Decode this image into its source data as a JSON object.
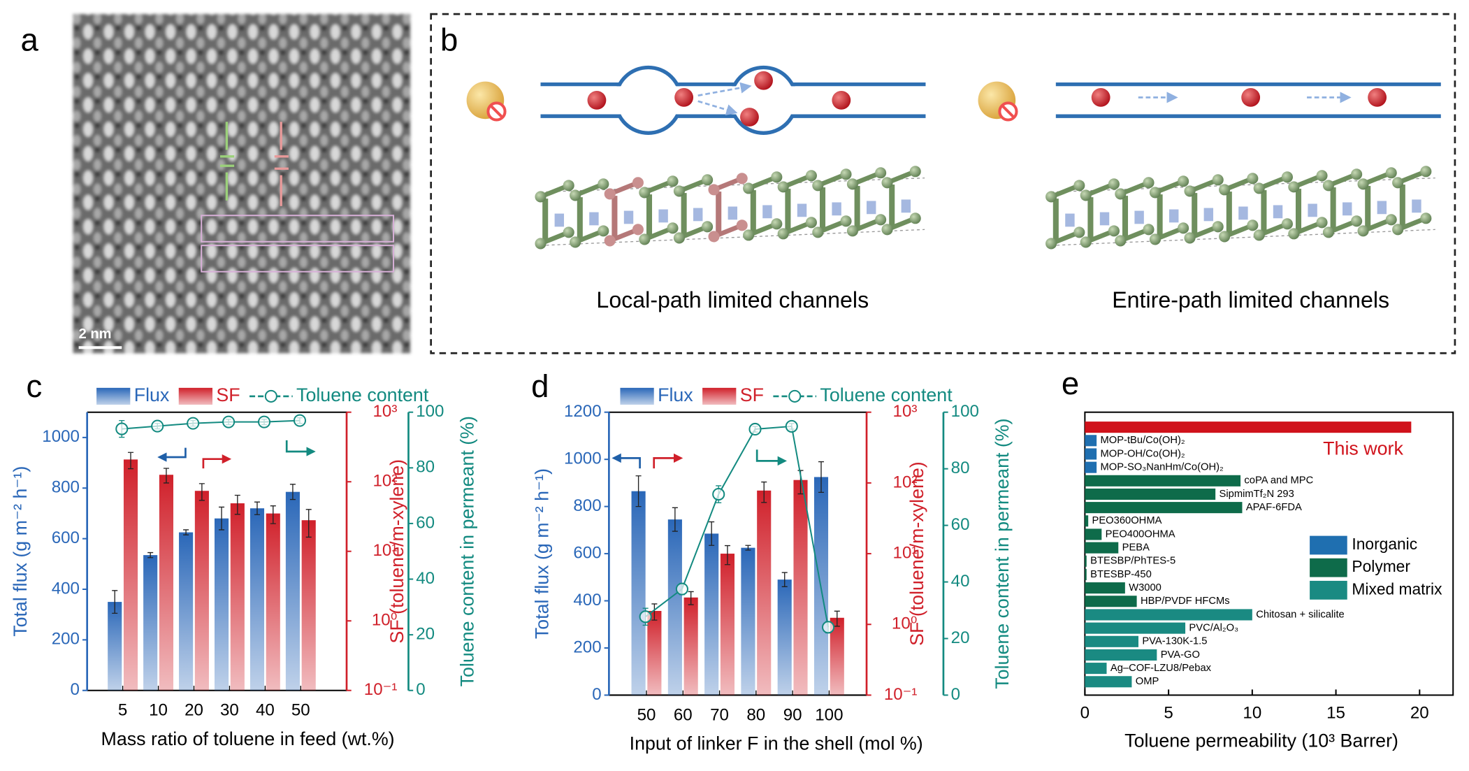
{
  "panels": {
    "a": {
      "label": "a",
      "scale_bar": "2 nm"
    },
    "b": {
      "label": "b",
      "captions": [
        "Local-path limited channels",
        "Entire-path limited channels"
      ]
    }
  },
  "chart_data": [
    {
      "type": "bar",
      "label": "c",
      "xlabel": "Mass ratio of toluene in feed (wt.%)",
      "categories": [
        "5",
        "10",
        "20",
        "30",
        "40",
        "50"
      ],
      "series": [
        {
          "name": "Flux",
          "type": "bar",
          "color": "#2a67b8",
          "values": [
            350,
            535,
            625,
            680,
            720,
            785
          ],
          "errors": [
            45,
            10,
            10,
            45,
            25,
            30
          ]
        },
        {
          "name": "SF",
          "type": "bar",
          "axis": "y2",
          "color": "#d0202a",
          "values": [
            209,
            126,
            74,
            49,
            35,
            28
          ],
          "errors": [
            55,
            30,
            20,
            15,
            10,
            12
          ]
        },
        {
          "name": "Toluene content",
          "type": "line",
          "axis": "y3",
          "color": "#138a80",
          "values": [
            94,
            95,
            96,
            96.5,
            96.5,
            97
          ],
          "errors": [
            3,
            1,
            1,
            1,
            1,
            1
          ]
        }
      ],
      "ylabel": "Total flux (g m⁻² h⁻¹)",
      "ylim": [
        0,
        1100
      ],
      "yticks": [
        0,
        200,
        400,
        600,
        800,
        1000
      ],
      "y2label": "SF (toluene/m-xylene)",
      "y2log": true,
      "y2lim": [
        0.1,
        1000
      ],
      "y2ticks": [
        {
          "value": 0.1,
          "label": "10⁻¹"
        },
        {
          "value": 1,
          "label": "10⁰"
        },
        {
          "value": 10,
          "label": "10¹"
        },
        {
          "value": 100,
          "label": "10²"
        },
        {
          "value": 1000,
          "label": "10³"
        }
      ],
      "y3label": "Toluene content in permeant (%)",
      "y3lim": [
        0,
        100
      ],
      "y3ticks": [
        0,
        20,
        40,
        60,
        80,
        100
      ]
    },
    {
      "type": "bar",
      "label": "d",
      "xlabel": "Input of linker F in the shell (mol %)",
      "categories": [
        "50",
        "60",
        "70",
        "80",
        "90",
        "100"
      ],
      "series": [
        {
          "name": "Flux",
          "type": "bar",
          "color": "#2a67b8",
          "values": [
            865,
            745,
            685,
            625,
            490,
            925
          ],
          "errors": [
            65,
            50,
            50,
            10,
            30,
            65
          ]
        },
        {
          "name": "SF",
          "type": "bar",
          "axis": "y2",
          "color": "#d0202a",
          "values": [
            1.55,
            2.4,
            10,
            78,
            110,
            1.24
          ],
          "errors": [
            0.4,
            0.5,
            3,
            25,
            40,
            0.3
          ]
        },
        {
          "name": "Toluene content",
          "type": "line",
          "axis": "y3",
          "color": "#138a80",
          "values": [
            27.7,
            37.5,
            71,
            94,
            95,
            24
          ],
          "errors": [
            3,
            2,
            3,
            1,
            1,
            2
          ]
        }
      ],
      "ylabel": "Total flux (g m⁻² h⁻¹)",
      "ylim": [
        0,
        1200
      ],
      "yticks": [
        0,
        200,
        400,
        600,
        800,
        1000,
        1200
      ],
      "y2label": "SF (toluene/m-xylene)",
      "y2log": true,
      "y2lim": [
        0.1,
        1000
      ],
      "y2ticks": [
        {
          "value": 0.1,
          "label": "10⁻¹"
        },
        {
          "value": 1,
          "label": "10⁰"
        },
        {
          "value": 10,
          "label": "10¹"
        },
        {
          "value": 100,
          "label": "10²"
        },
        {
          "value": 1000,
          "label": "10³"
        }
      ],
      "y3label": "Toluene content in permeant (%)",
      "y3lim": [
        0,
        100
      ],
      "y3ticks": [
        0,
        20,
        40,
        60,
        80,
        100
      ]
    },
    {
      "type": "hbar",
      "label": "e",
      "xlabel": "Toluene permeability (10³ Barrer)",
      "annotation": "This work",
      "categories": [
        "This work",
        "MOP-tBu/Co(OH)₂",
        "MOP-OH/Co(OH)₂",
        "MOP-SO₃NanHm/Co(OH)₂",
        "coPA and MPC",
        "SipmimTf₂N 293",
        "APAF-6FDA",
        "PEO360OHMA",
        "PEO400OHMA",
        "PEBA",
        "BTESBP/PhTES-5",
        "BTESBP-450",
        "W3000",
        "HBP/PVDF HFCMs",
        "Chitosan + silicalite",
        "PVC/Al₂O₃",
        "PVA-130K-1.5",
        "PVA-GO",
        "Ag–COF-LZU8/Pebax",
        "OMP"
      ],
      "values": [
        19.5,
        0.7,
        0.7,
        0.7,
        9.3,
        7.8,
        9.4,
        0.2,
        1.0,
        2.0,
        0.1,
        0.1,
        2.4,
        3.1,
        10.0,
        6.0,
        3.2,
        4.3,
        1.3,
        2.8
      ],
      "colors": [
        "#d0121b",
        "#1f6fb0",
        "#1f6fb0",
        "#1f6fb0",
        "#0e6b4a",
        "#0e6b4a",
        "#0e6b4a",
        "#0e6b4a",
        "#0e6b4a",
        "#0e6b4a",
        "#0e6b4a",
        "#0e6b4a",
        "#0e6b4a",
        "#0e6b4a",
        "#1a8a82",
        "#1a8a82",
        "#1a8a82",
        "#1a8a82",
        "#1a8a82",
        "#1a8a82"
      ],
      "legend": [
        {
          "name": "Inorganic",
          "color": "#1f6fb0"
        },
        {
          "name": "Polymer",
          "color": "#0e6b4a"
        },
        {
          "name": "Mixed matrix",
          "color": "#1a8a82"
        }
      ],
      "xlim": [
        0,
        22
      ],
      "xticks": [
        0,
        5,
        10,
        15,
        20
      ]
    }
  ]
}
